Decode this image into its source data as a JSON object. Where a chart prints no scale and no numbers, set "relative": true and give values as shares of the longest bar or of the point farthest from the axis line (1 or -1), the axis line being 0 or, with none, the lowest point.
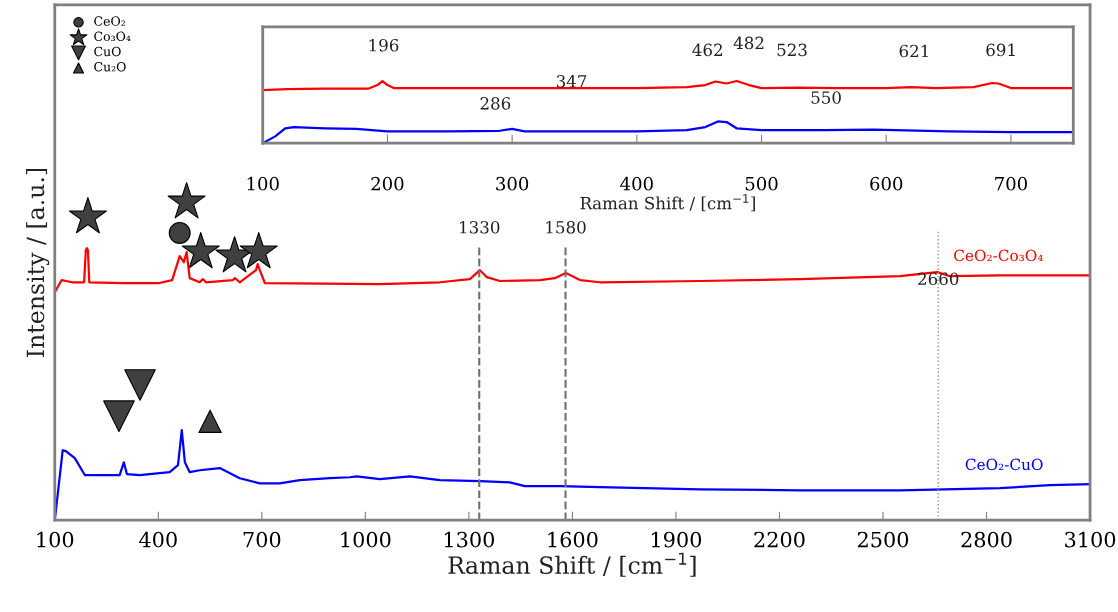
{
  "chart_data": [
    {
      "type": "line",
      "relative": true,
      "xlabel": "Raman Shift / [cm$^{−1}$]",
      "ylabel": "Intensity / [a.u.]",
      "xlim": [
        100,
        3100
      ],
      "xticks": [
        100,
        400,
        700,
        1000,
        1300,
        1600,
        1900,
        2200,
        2500,
        2800,
        3100
      ],
      "legend": "top left",
      "grid": false,
      "series": [
        {
          "name": "CeO₂-Co₃O₄",
          "color": "#ff0000",
          "x": [
            100,
            120,
            150,
            185,
            190,
            193,
            196,
            200,
            300,
            400,
            440,
            462,
            474,
            482,
            491,
            520,
            529,
            538,
            616,
            622,
            636,
            683,
            688,
            694,
            709,
            1042,
            1216,
            1303,
            1332,
            1352,
            1390,
            1506,
            1549,
            1581,
            1622,
            1680,
            1970,
            2259,
            2549,
            2657,
            2694,
            2839,
            3100
          ],
          "values": [
            0.717,
            0.755,
            0.748,
            0.748,
            0.849,
            0.855,
            0.849,
            0.748,
            0.745,
            0.745,
            0.755,
            0.83,
            0.811,
            0.843,
            0.761,
            0.748,
            0.758,
            0.748,
            0.755,
            0.761,
            0.748,
            0.786,
            0.805,
            0.786,
            0.745,
            0.742,
            0.748,
            0.758,
            0.786,
            0.764,
            0.752,
            0.755,
            0.761,
            0.777,
            0.755,
            0.748,
            0.752,
            0.758,
            0.767,
            0.78,
            0.767,
            0.77,
            0.77
          ]
        },
        {
          "name": "CeO₂-CuO",
          "color": "#0000ff",
          "x": [
            100,
            123,
            132,
            158,
            187,
            230,
            288,
            300,
            309,
            346,
            433,
            457,
            468,
            477,
            491,
            520,
            578,
            636,
            694,
            752,
            810,
            897,
            955,
            975,
            1042,
            1129,
            1216,
            1332,
            1419,
            1462,
            1564,
            1680,
            1970,
            2259,
            2549,
            2839,
            2984,
            3100
          ],
          "values": [
            0,
            0.22,
            0.217,
            0.195,
            0.142,
            0.142,
            0.142,
            0.182,
            0.145,
            0.142,
            0.151,
            0.173,
            0.283,
            0.182,
            0.151,
            0.157,
            0.164,
            0.132,
            0.116,
            0.116,
            0.126,
            0.132,
            0.135,
            0.138,
            0.129,
            0.138,
            0.126,
            0.123,
            0.119,
            0.107,
            0.107,
            0.104,
            0.097,
            0.094,
            0.094,
            0.101,
            0.11,
            0.113
          ]
        },
        {
          "name": "CeO₂",
          "type": "scatter",
          "marker": "circle",
          "color": "#404040",
          "x": [
            462
          ],
          "values": [
            0.903
          ]
        },
        {
          "name": "Co₃O₄",
          "type": "scatter",
          "marker": "star",
          "color": "#404040",
          "x": [
            196,
            482,
            523,
            621,
            691
          ],
          "values": [
            0.953,
            1.0,
            0.843,
            0.83,
            0.843
          ]
        },
        {
          "name": "CuO",
          "type": "scatter",
          "marker": "triangle_down",
          "color": "#404040",
          "x": [
            286,
            347
          ],
          "values": [
            0.327,
            0.425
          ]
        },
        {
          "name": "Cu₂O",
          "type": "scatter",
          "marker": "triangle",
          "color": "#404040",
          "x": [
            550
          ],
          "values": [
            0.311
          ]
        }
      ],
      "ref_lines": [
        {
          "axis": "x",
          "value": 1330,
          "label": "1330",
          "line_style": "dashed",
          "color": "#707070"
        },
        {
          "axis": "x",
          "value": 1580,
          "label": "1580",
          "line_style": "dashed",
          "color": "#707070"
        },
        {
          "axis": "x",
          "value": 2660,
          "label": "2660",
          "line_style": "dotted",
          "color": "#909090"
        }
      ]
    },
    {
      "type": "line",
      "relative": true,
      "xlabel": "Raman Shift / [cm$^{−1}$]",
      "xlim": [
        100,
        750
      ],
      "xticks": [
        100,
        200,
        300,
        400,
        500,
        600,
        700
      ],
      "grid": false,
      "series": [
        {
          "color": "#ff0000",
          "x": [
            100,
            120,
            150,
            185,
            192,
            196,
            200,
            205,
            250,
            300,
            350,
            400,
            440,
            455,
            463,
            472,
            480,
            490,
            500,
            530,
            560,
            600,
            620,
            640,
            670,
            685,
            690,
            700,
            750
          ],
          "values": [
            0.855,
            0.871,
            0.879,
            0.879,
            0.935,
            1.0,
            0.935,
            0.887,
            0.887,
            0.887,
            0.887,
            0.887,
            0.903,
            0.935,
            0.992,
            0.96,
            1.0,
            0.935,
            0.887,
            0.895,
            0.887,
            0.887,
            0.903,
            0.887,
            0.903,
            0.968,
            0.96,
            0.887,
            0.887
          ]
        },
        {
          "color": "#0000ff",
          "x": [
            100,
            110,
            118,
            125,
            150,
            175,
            200,
            250,
            290,
            300,
            310,
            400,
            440,
            455,
            465,
            472,
            480,
            500,
            550,
            590,
            650,
            700,
            750
          ],
          "values": [
            0,
            0.11,
            0.24,
            0.26,
            0.24,
            0.23,
            0.19,
            0.19,
            0.2,
            0.23,
            0.19,
            0.19,
            0.21,
            0.26,
            0.35,
            0.34,
            0.24,
            0.21,
            0.21,
            0.22,
            0.19,
            0.18,
            0.18
          ]
        }
      ],
      "annotations": [
        "196",
        "286",
        "347",
        "462",
        "482",
        "523",
        "550",
        "621",
        "691"
      ]
    }
  ]
}
